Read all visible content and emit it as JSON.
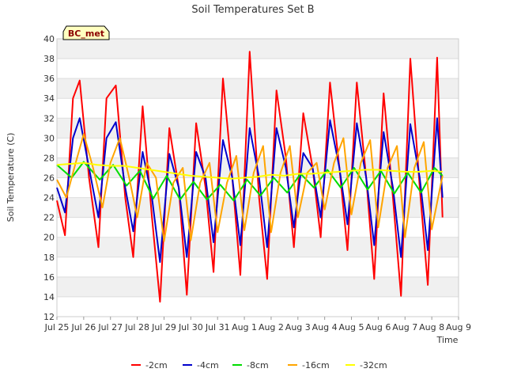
{
  "chart_data": {
    "type": "line",
    "title": "Soil Temperatures Set B",
    "xlabel": "Time",
    "ylabel": "Soil Temperature (C)",
    "badge": "BC_met",
    "ylim": [
      12,
      40
    ],
    "yticks": [
      12,
      14,
      16,
      18,
      20,
      22,
      24,
      26,
      28,
      30,
      32,
      34,
      36,
      38,
      40
    ],
    "xlim": [
      0,
      15
    ],
    "xtick_labels": [
      "Jul 25",
      "Jul 26",
      "Jul 27",
      "Jul 28",
      "Jul 29",
      "Jul 30",
      "Jul 31",
      "Aug 1",
      "Aug 2",
      "Aug 3",
      "Aug 4",
      "Aug 5",
      "Aug 6",
      "Aug 7",
      "Aug 8",
      "Aug 9"
    ],
    "grid": true,
    "legend_position": "bottom",
    "series": [
      {
        "name": "-2cm",
        "color": "#ff0000",
        "x": [
          0.0,
          0.3,
          0.6,
          0.85,
          1.2,
          1.55,
          1.85,
          2.2,
          2.55,
          2.85,
          3.2,
          3.55,
          3.85,
          4.2,
          4.55,
          4.85,
          5.2,
          5.55,
          5.85,
          6.2,
          6.55,
          6.85,
          7.2,
          7.55,
          7.85,
          8.2,
          8.55,
          8.85,
          9.2,
          9.55,
          9.85,
          10.2,
          10.55,
          10.85,
          11.2,
          11.55,
          11.85,
          12.2,
          12.55,
          12.85,
          13.2,
          13.55,
          13.85,
          14.2,
          14.4
        ],
        "y": [
          23.7,
          20.2,
          34.0,
          35.8,
          26.0,
          19.0,
          34.0,
          35.3,
          24.0,
          18.0,
          33.2,
          22.0,
          13.5,
          31.0,
          25.0,
          14.2,
          31.5,
          25.0,
          16.5,
          36.0,
          26.0,
          16.2,
          38.7,
          24.0,
          15.8,
          34.8,
          28.0,
          19.0,
          32.5,
          27.0,
          20.0,
          35.6,
          27.0,
          18.7,
          35.6,
          26.0,
          15.8,
          34.5,
          24.0,
          14.1,
          38.0,
          25.0,
          15.2,
          38.1,
          22.0
        ]
      },
      {
        "name": "-4cm",
        "color": "#0000cc",
        "x": [
          0.0,
          0.3,
          0.6,
          0.85,
          1.2,
          1.55,
          1.85,
          2.2,
          2.55,
          2.85,
          3.2,
          3.55,
          3.85,
          4.2,
          4.55,
          4.85,
          5.2,
          5.55,
          5.85,
          6.2,
          6.55,
          6.85,
          7.2,
          7.55,
          7.85,
          8.2,
          8.55,
          8.85,
          9.2,
          9.55,
          9.85,
          10.2,
          10.55,
          10.85,
          11.2,
          11.55,
          11.85,
          12.2,
          12.55,
          12.85,
          13.2,
          13.55,
          13.85,
          14.2,
          14.4
        ],
        "y": [
          25.0,
          22.5,
          30.0,
          32.0,
          27.0,
          22.0,
          30.0,
          31.6,
          25.0,
          20.6,
          28.6,
          24.0,
          17.5,
          28.4,
          25.0,
          18.0,
          28.6,
          26.0,
          19.5,
          29.8,
          26.0,
          19.2,
          31.0,
          26.0,
          19.0,
          31.0,
          27.0,
          21.0,
          28.5,
          27.0,
          22.0,
          31.8,
          27.0,
          21.3,
          31.5,
          26.0,
          19.2,
          30.6,
          25.0,
          18.0,
          31.4,
          26.0,
          18.7,
          32.0,
          24.0
        ]
      },
      {
        "name": "-8cm",
        "color": "#00dd00",
        "x": [
          0.0,
          0.55,
          1.0,
          1.6,
          2.1,
          2.6,
          3.1,
          3.6,
          4.1,
          4.6,
          5.1,
          5.6,
          6.1,
          6.6,
          7.1,
          7.6,
          8.1,
          8.6,
          9.1,
          9.6,
          10.1,
          10.6,
          11.1,
          11.6,
          12.1,
          12.6,
          13.1,
          13.6,
          14.1,
          14.4
        ],
        "y": [
          27.3,
          26.0,
          27.6,
          25.8,
          27.3,
          25.2,
          26.7,
          23.9,
          26.2,
          23.8,
          25.6,
          23.8,
          25.3,
          23.7,
          25.8,
          24.2,
          26.0,
          24.5,
          26.4,
          25.0,
          26.8,
          25.0,
          27.0,
          24.8,
          26.7,
          24.4,
          26.5,
          24.5,
          27.0,
          26.2
        ]
      },
      {
        "name": "-16cm",
        "color": "#ffa500",
        "x": [
          0.0,
          0.35,
          0.7,
          1.0,
          1.35,
          1.7,
          2.0,
          2.35,
          2.7,
          3.0,
          3.35,
          3.7,
          4.0,
          4.35,
          4.7,
          5.0,
          5.35,
          5.7,
          6.0,
          6.35,
          6.7,
          7.0,
          7.35,
          7.7,
          8.0,
          8.35,
          8.7,
          9.0,
          9.35,
          9.7,
          10.0,
          10.35,
          10.7,
          11.0,
          11.35,
          11.7,
          12.0,
          12.35,
          12.7,
          13.0,
          13.35,
          13.7,
          14.0,
          14.4
        ],
        "y": [
          25.8,
          24.0,
          27.5,
          30.4,
          27.0,
          23.0,
          27.5,
          30.0,
          26.0,
          22.0,
          27.5,
          26.0,
          19.6,
          25.5,
          27.0,
          19.7,
          25.5,
          27.5,
          20.5,
          25.5,
          28.2,
          20.7,
          26.5,
          29.2,
          20.5,
          26.5,
          29.2,
          22.0,
          26.5,
          27.5,
          22.8,
          27.5,
          30.0,
          22.3,
          27.5,
          29.8,
          21.0,
          27.0,
          29.2,
          20.0,
          27.0,
          29.6,
          20.8,
          26.2
        ]
      },
      {
        "name": "-32cm",
        "color": "#ffff00",
        "x": [
          0.0,
          0.5,
          1.0,
          1.5,
          2.0,
          2.5,
          3.0,
          3.5,
          4.0,
          4.5,
          5.0,
          5.5,
          6.0,
          6.5,
          7.0,
          7.5,
          8.0,
          8.5,
          9.0,
          9.5,
          10.0,
          10.5,
          11.0,
          11.5,
          12.0,
          12.5,
          13.0,
          13.5,
          14.0,
          14.4
        ],
        "y": [
          27.3,
          27.4,
          27.5,
          27.3,
          27.2,
          27.2,
          27.0,
          26.8,
          26.6,
          26.4,
          26.2,
          26.1,
          26.0,
          25.9,
          26.0,
          26.1,
          26.3,
          26.2,
          26.4,
          26.4,
          26.5,
          26.6,
          26.7,
          26.8,
          26.8,
          26.7,
          26.6,
          26.6,
          26.7,
          26.6
        ]
      }
    ]
  }
}
